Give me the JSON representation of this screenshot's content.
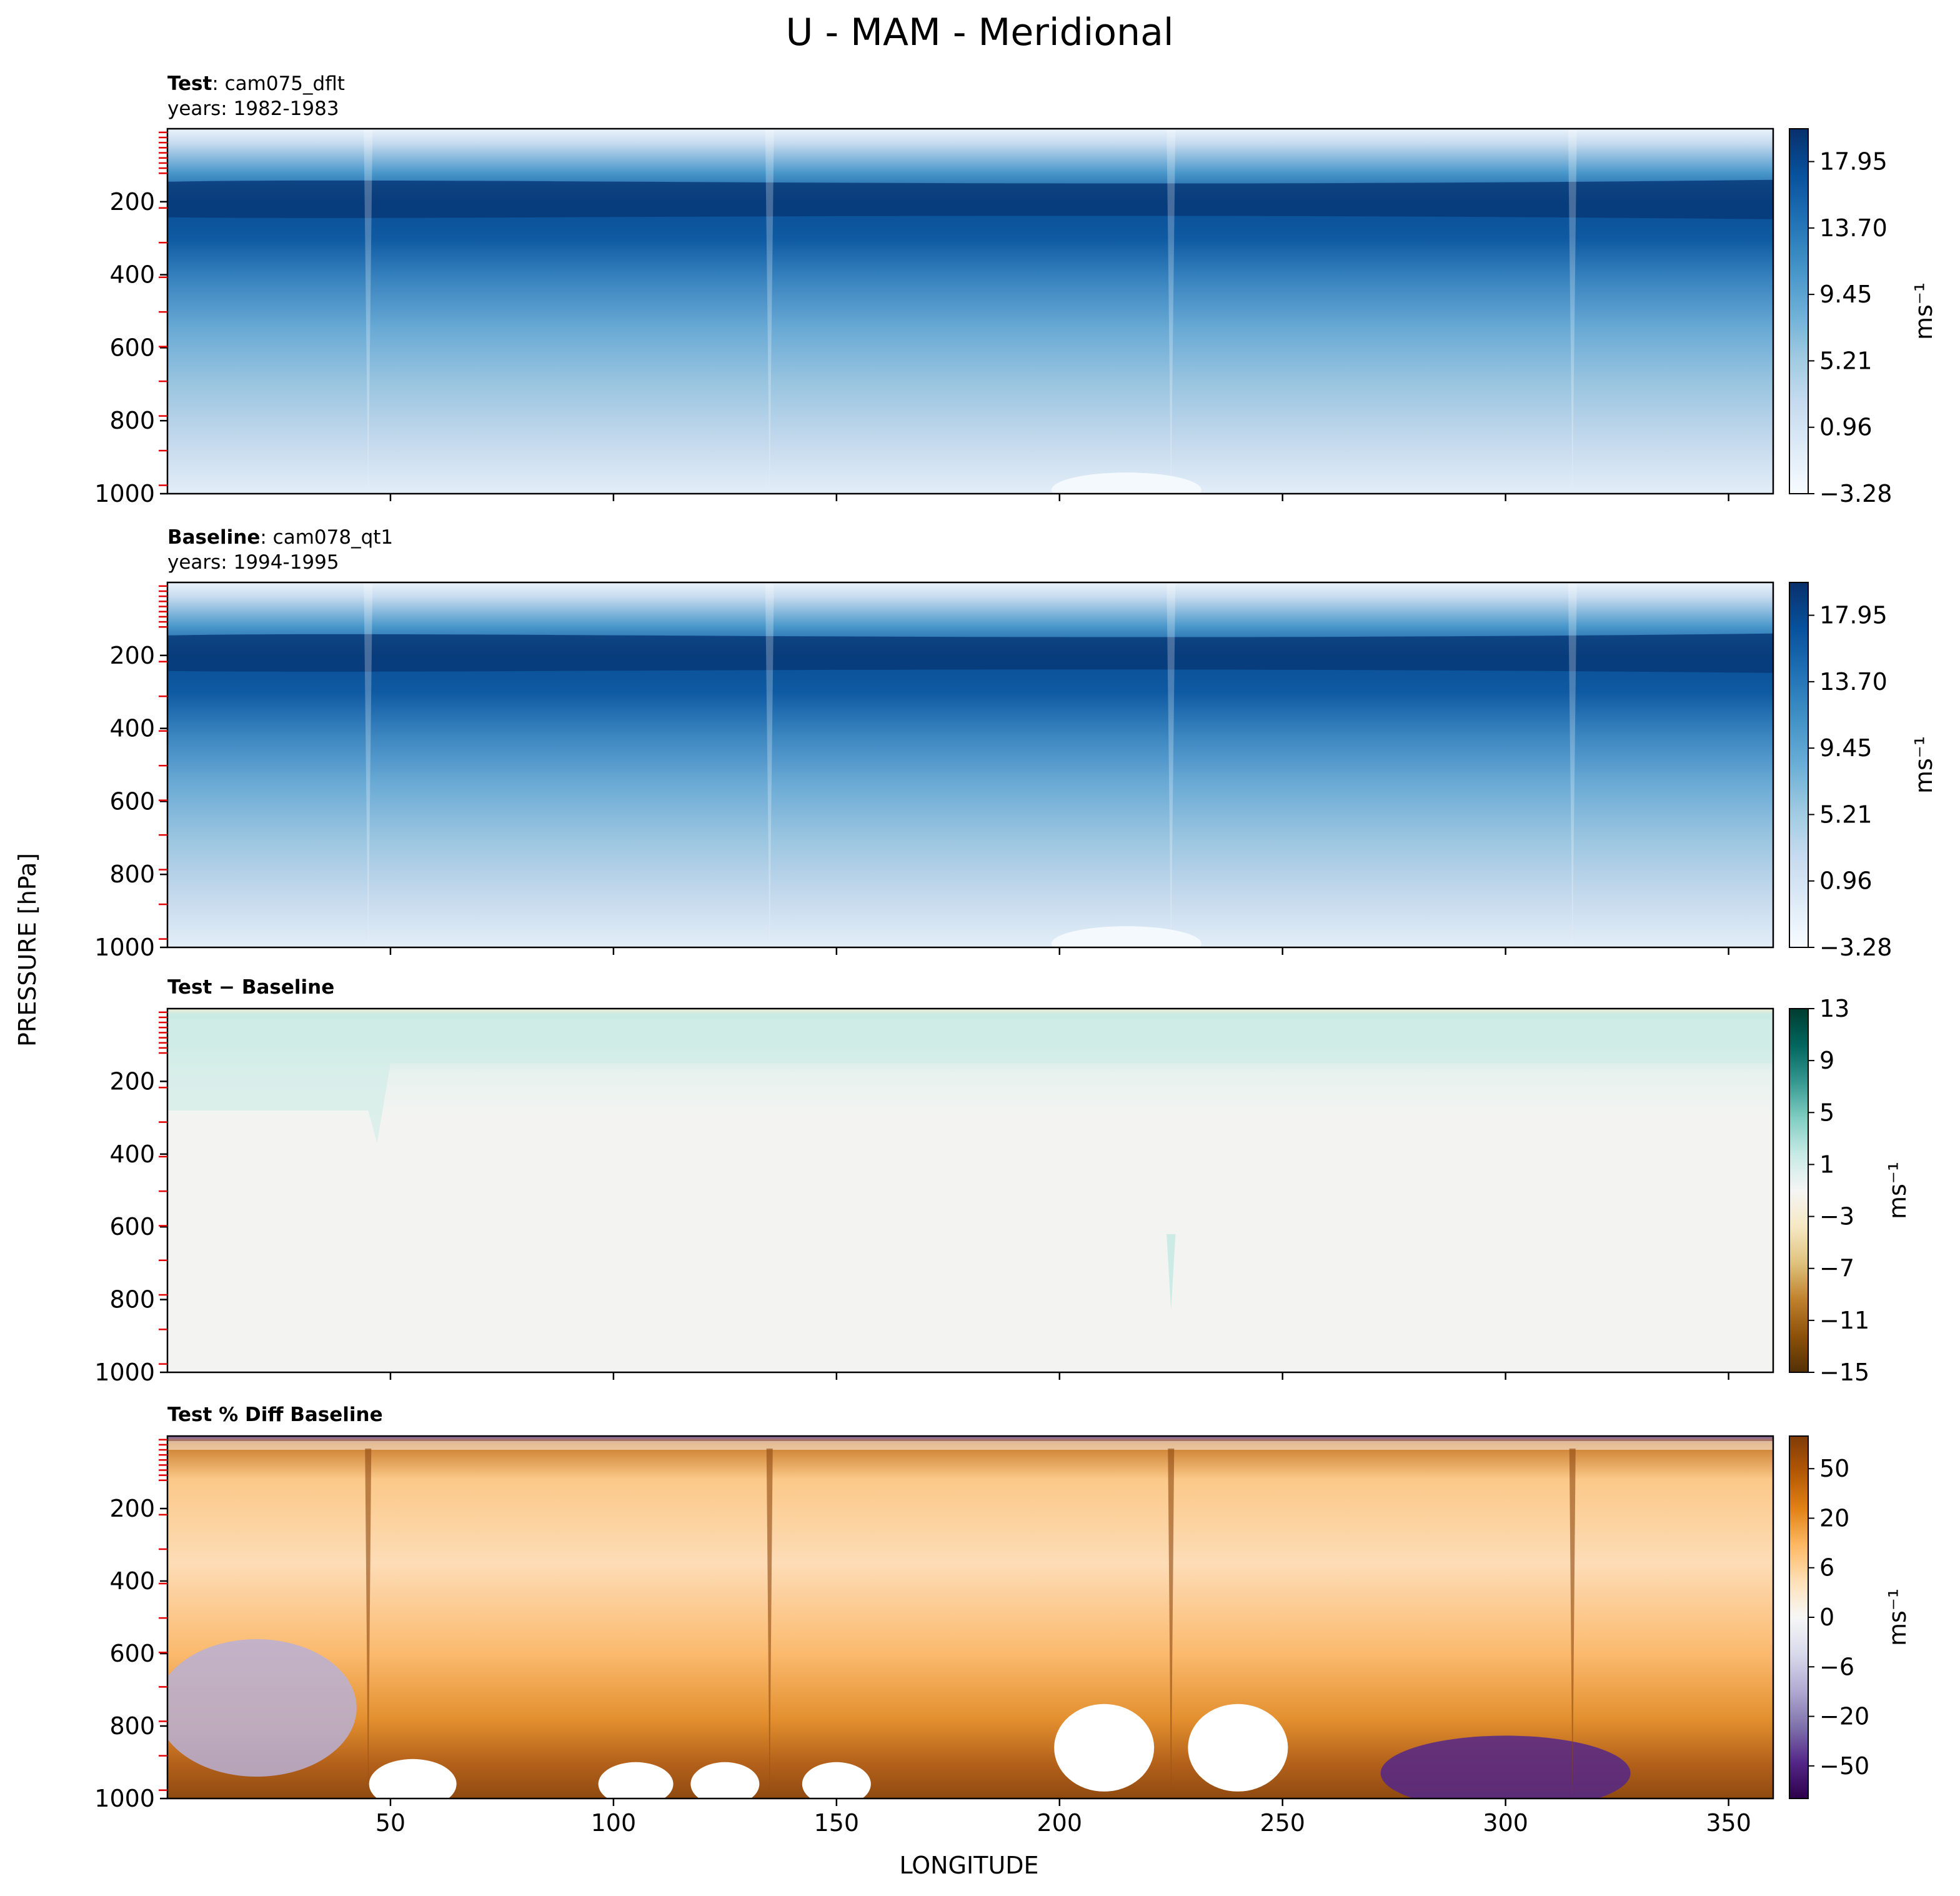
{
  "chart_data": {
    "type": "heatmap",
    "title": "U - MAM - Meridional",
    "xlabel": "LONGITUDE",
    "ylabel": "PRESSURE [hPa]",
    "x_range": [
      0,
      360
    ],
    "y_range": [
      0,
      1000
    ],
    "y_inverted": true,
    "x_ticks": [
      "50",
      "100",
      "150",
      "200",
      "250",
      "300",
      "350"
    ],
    "y_ticks": [
      "200",
      "400",
      "600",
      "800",
      "1000"
    ],
    "panels": [
      {
        "title_bold": "Test",
        "title_text": "cam075_dflt",
        "years": "years: 1982-1983",
        "colormap": "Blues",
        "cbar_ticks": [
          "−3.28",
          "0.96",
          "5.21",
          "9.45",
          "13.70",
          "17.95"
        ],
        "cbar_unit": "ms⁻¹",
        "jet_core_hPa": 200,
        "max_ms": 22
      },
      {
        "title_bold": "Baseline",
        "title_text": "cam078_qt1",
        "years": "years: 1994-1995",
        "colormap": "Blues",
        "cbar_ticks": [
          "−3.28",
          "0.96",
          "5.21",
          "9.45",
          "13.70",
          "17.95"
        ],
        "cbar_unit": "ms⁻¹",
        "jet_core_hPa": 200,
        "max_ms": 22
      },
      {
        "title_bold": "Test − Baseline",
        "title_text": "",
        "years": "",
        "colormap": "BrBG",
        "cbar_ticks": [
          "−15",
          "−11",
          "−7",
          "−3",
          "1",
          "5",
          "9",
          "13"
        ],
        "cbar_unit": "ms⁻¹"
      },
      {
        "title_bold": "Test % Diff Baseline",
        "title_text": "",
        "years": "",
        "colormap": "PuOr",
        "cbar_ticks": [
          "−50",
          "−20",
          "−6",
          "0",
          "6",
          "20",
          "50"
        ],
        "cbar_unit": "ms⁻¹"
      }
    ]
  }
}
